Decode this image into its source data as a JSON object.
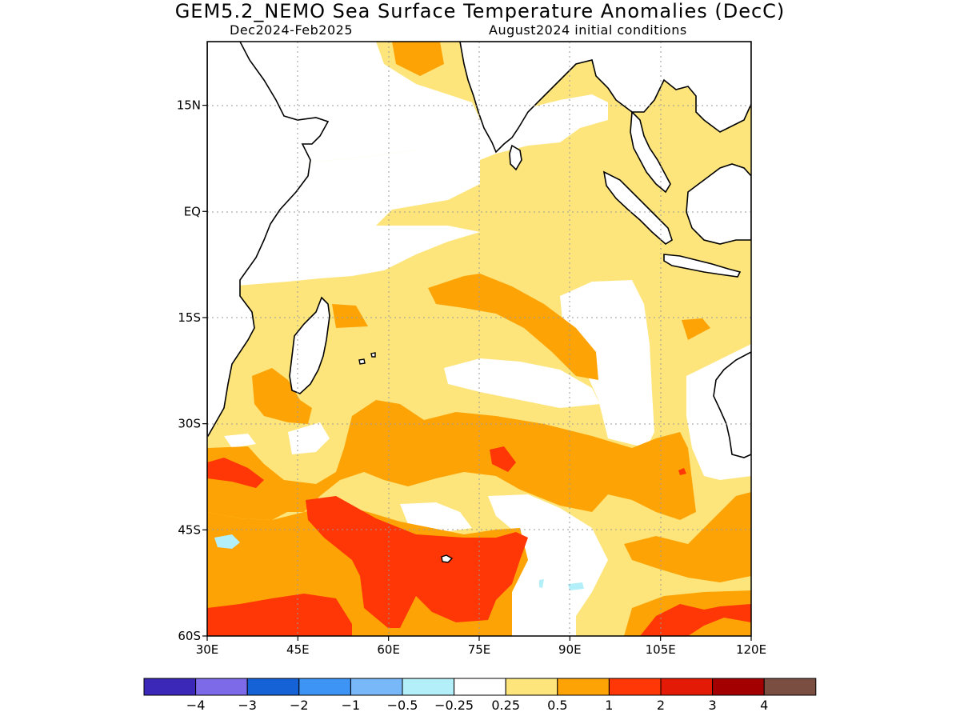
{
  "header": {
    "title": "GEM5.2_NEMO Sea Surface Temperature Anomalies (DecC)",
    "period": "Dec2024-Feb2025",
    "initial_conditions": "August2024 initial conditions"
  },
  "map": {
    "lon_range": [
      30,
      120
    ],
    "lat_range": [
      -60,
      24
    ],
    "lat_ticks": [
      {
        "value": 15,
        "label": "15N"
      },
      {
        "value": 0,
        "label": "EQ"
      },
      {
        "value": -15,
        "label": "15S"
      },
      {
        "value": -30,
        "label": "30S"
      },
      {
        "value": -45,
        "label": "45S"
      },
      {
        "value": -60,
        "label": "60S"
      }
    ],
    "lon_ticks": [
      {
        "value": 30,
        "label": "30E"
      },
      {
        "value": 45,
        "label": "45E"
      },
      {
        "value": 60,
        "label": "60E"
      },
      {
        "value": 75,
        "label": "75E"
      },
      {
        "value": 90,
        "label": "90E"
      },
      {
        "value": 105,
        "label": "105E"
      },
      {
        "value": 120,
        "label": "120E"
      }
    ]
  },
  "colorbar": {
    "colors": [
      "#3b27b8",
      "#7d6ae8",
      "#1561d6",
      "#3d94f5",
      "#78b8f8",
      "#b3eff9",
      "#ffffff",
      "#fde57c",
      "#fea305",
      "#ff3605",
      "#e31a05",
      "#a30101",
      "#7a4e40"
    ],
    "labels": [
      "-4",
      "-3",
      "-2",
      "-1",
      "-0.5",
      "-0.25",
      "0.25",
      "0.5",
      "1",
      "2",
      "3",
      "4"
    ]
  }
}
